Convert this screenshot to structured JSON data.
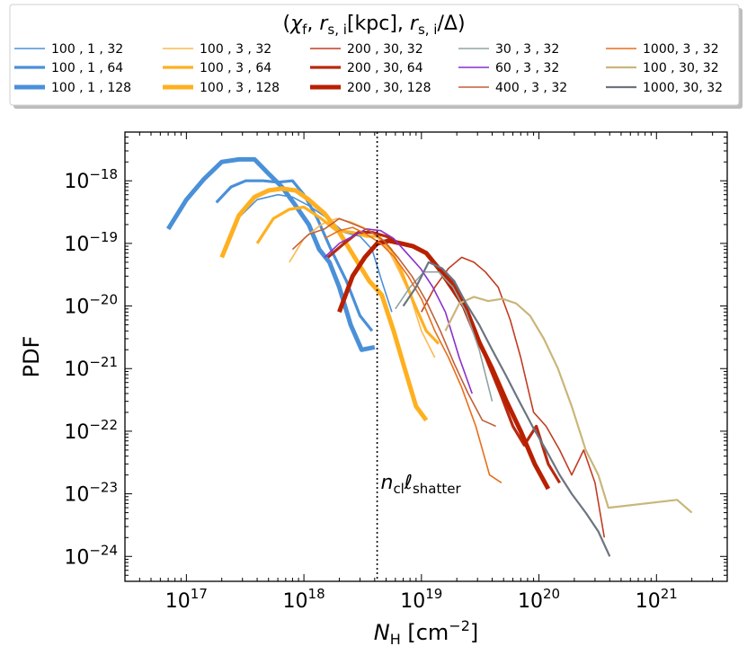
{
  "chart_data": {
    "type": "line",
    "title": "",
    "legend_title": "(χ_f, r_s,i[kpc], r_s,i/Δ)",
    "legend_title_parts": {
      "open": "(",
      "chi": "χ",
      "f": "f",
      "r": "r",
      "si": "s, i",
      "kpc": "[kpc], ",
      "delta": "/Δ)"
    },
    "legend_position": "top, above plot",
    "xlabel": "N_H [cm^-2]",
    "xlabel_parts": {
      "n": "N",
      "h": "H",
      "unit": " [cm",
      "exp": "−2",
      "close": "]"
    },
    "ylabel": "PDF",
    "xscale": "log",
    "yscale": "log",
    "xlim": [
      3e+16,
      4e+21
    ],
    "ylim": [
      4e-25,
      6e-18
    ],
    "x_ticks": [
      {
        "value": 1e+17,
        "base": "10",
        "exp": "17"
      },
      {
        "value": 1e+18,
        "base": "10",
        "exp": "18"
      },
      {
        "value": 1e+19,
        "base": "10",
        "exp": "19"
      },
      {
        "value": 1e+20,
        "base": "10",
        "exp": "20"
      },
      {
        "value": 1e+21,
        "base": "10",
        "exp": "21"
      }
    ],
    "y_ticks": [
      {
        "value": 1e-18,
        "base": "10",
        "exp": "−18"
      },
      {
        "value": 1e-19,
        "base": "10",
        "exp": "−19"
      },
      {
        "value": 1e-20,
        "base": "10",
        "exp": "−20"
      },
      {
        "value": 1e-21,
        "base": "10",
        "exp": "−21"
      },
      {
        "value": 1e-22,
        "base": "10",
        "exp": "−22"
      },
      {
        "value": 1e-23,
        "base": "10",
        "exp": "−23"
      },
      {
        "value": 1e-24,
        "base": "10",
        "exp": "−24"
      }
    ],
    "vline": {
      "x": 4.2e+18,
      "style": "dotted"
    },
    "annotation": {
      "text": "n_cl ℓ_shatter",
      "n": "n",
      "cl": "cl",
      "l": "ℓ",
      "sub": "shatter",
      "x": 4.5e+18,
      "y": 1.2e-23
    },
    "series": [
      {
        "name": "100 , 1 , 32",
        "color": "#4a90d9",
        "width": 1.6,
        "x": [
          2.8e+17,
          4e+17,
          6e+17,
          8e+17,
          1.1e+18,
          1.6e+18,
          2.2e+18,
          3e+18,
          3.8e+18,
          4.6e+18,
          5.6e+18
        ],
        "y": [
          2.6e-19,
          5e-19,
          6e-19,
          5.5e-19,
          4e-19,
          2.5e-19,
          1.5e-19,
          1.3e-19,
          8e-20,
          2.5e-20,
          8e-21
        ]
      },
      {
        "name": "100 , 1 , 64",
        "color": "#4a90d9",
        "width": 3.2,
        "x": [
          1.8e+17,
          2.4e+17,
          3.2e+17,
          4.5e+17,
          6e+17,
          8e+17,
          1e+18,
          1.3e+18,
          1.7e+18,
          2.3e+18,
          3e+18,
          3.8e+18
        ],
        "y": [
          4.5e-19,
          8e-19,
          1e-18,
          1e-18,
          9.5e-19,
          1e-18,
          6e-19,
          2.5e-19,
          8e-20,
          2.5e-20,
          7e-21,
          4e-21
        ]
      },
      {
        "name": "100 , 1 , 128",
        "color": "#4a90d9",
        "width": 5,
        "x": [
          7e+16,
          1e+17,
          1.4e+17,
          2e+17,
          2.8e+17,
          3.8e+17,
          5e+17,
          6.5e+17,
          8.5e+17,
          1.1e+18,
          1.35e+18,
          1.65e+18,
          2e+18,
          2.5e+18,
          3.1e+18,
          4e+18
        ],
        "y": [
          1.7e-19,
          5e-19,
          1.05e-18,
          2e-18,
          2.2e-18,
          2.2e-18,
          1.3e-18,
          8e-19,
          4e-19,
          2e-19,
          8e-20,
          5e-20,
          2e-20,
          5e-21,
          2e-21,
          2.2e-21
        ]
      },
      {
        "name": "100 , 3 , 32",
        "color": "#ffb84d",
        "width": 1.6,
        "x": [
          7.5e+17,
          1e+18,
          1.4e+18,
          1.9e+18,
          2.5e+18,
          3.2e+18,
          4e+18,
          5.2e+18,
          6.5e+18,
          8e+18,
          1e+19,
          1.3e+19
        ],
        "y": [
          5e-20,
          1.2e-19,
          2e-19,
          2.5e-19,
          2.2e-19,
          1.8e-19,
          1.4e-19,
          8e-20,
          3.5e-20,
          1.5e-20,
          4e-21,
          1.5e-21
        ]
      },
      {
        "name": "100 , 3 , 64",
        "color": "#ffb020",
        "width": 3.2,
        "x": [
          4e+17,
          5.5e+17,
          7.5e+17,
          1e+18,
          1.4e+18,
          1.9e+18,
          2.6e+18,
          3.4e+18,
          4.3e+18,
          5.5e+18,
          6.8e+18,
          8.5e+18,
          1.1e+19,
          1.4e+19
        ],
        "y": [
          1e-19,
          2.5e-19,
          3.5e-19,
          3.8e-19,
          2.5e-19,
          1.6e-19,
          1.5e-19,
          1.3e-19,
          1.3e-19,
          8e-20,
          3.5e-20,
          1.2e-20,
          4e-21,
          2.5e-21
        ]
      },
      {
        "name": "100 , 3 , 128",
        "color": "#ffb020",
        "width": 5,
        "x": [
          2e+17,
          2.8e+17,
          3.8e+17,
          5e+17,
          6.5e+17,
          8.5e+17,
          1.1e+18,
          1.5e+18,
          2e+18,
          2.7e+18,
          3.6e+18,
          4.6e+18,
          5.8e+18,
          7.2e+18,
          9e+18,
          1.1e+19
        ],
        "y": [
          6e-20,
          2.8e-19,
          5.5e-19,
          7e-19,
          7.5e-19,
          7e-19,
          5e-19,
          3e-19,
          1.5e-19,
          6e-20,
          2.5e-20,
          1.5e-20,
          4e-21,
          1e-21,
          2.5e-22,
          1.5e-22
        ]
      },
      {
        "name": "200 , 30, 32",
        "color": "#c23b22",
        "width": 1.6,
        "x": [
          1e+19,
          1.3e+19,
          1.7e+19,
          2.2e+19,
          2.8e+19,
          3.5e+19,
          4.5e+19,
          5.7e+19,
          7e+19,
          9e+19,
          1.15e+20,
          1.5e+20,
          1.9e+20,
          2.4e+20,
          3e+20,
          3.6e+20
        ],
        "y": [
          8e-21,
          2e-20,
          4e-20,
          6e-20,
          5e-20,
          3.5e-20,
          2e-20,
          6e-21,
          1.5e-21,
          2e-22,
          1.2e-22,
          5e-23,
          2e-23,
          5e-23,
          1.5e-23,
          2e-24
        ]
      },
      {
        "name": "200 , 30, 64",
        "color": "#b82a10",
        "width": 3.2,
        "x": [
          1.6e+18,
          2.2e+18,
          2.9e+18,
          3.8e+18,
          5e+18,
          6.5e+18,
          8.5e+18,
          1.1e+19,
          1.4e+19,
          1.8e+19,
          2.3e+19,
          2.9e+19,
          3.7e+19,
          4.7e+19,
          6e+19,
          7.5e+19,
          9.5e+19,
          1.2e+20,
          1.5e+20
        ],
        "y": [
          6e-20,
          1e-19,
          1.5e-19,
          1.5e-19,
          1.3e-19,
          1e-19,
          9e-20,
          7e-20,
          4e-20,
          2.5e-20,
          1.2e-20,
          4e-21,
          1.2e-21,
          4e-22,
          1.2e-22,
          6e-23,
          1.2e-22,
          3e-23,
          1.5e-23
        ]
      },
      {
        "name": "200 , 30, 128",
        "color": "#b82000",
        "width": 5,
        "x": [
          2e+18,
          2.6e+18,
          3.3e+18,
          4.2e+18,
          5.3e+18,
          6.7e+18,
          8.5e+18,
          1.1e+19,
          1.4e+19,
          1.8e+19,
          2.3e+19,
          3e+19,
          4e+19,
          5.3e+19,
          7e+19,
          9.2e+19,
          1.2e+20
        ],
        "y": [
          8e-21,
          3e-20,
          6e-20,
          1e-19,
          1.1e-19,
          1e-19,
          9e-20,
          7e-20,
          4e-20,
          2e-20,
          1e-20,
          3e-21,
          1e-21,
          3e-22,
          1e-22,
          3e-23,
          1.2e-23
        ]
      },
      {
        "name": "30 , 3 , 32",
        "color": "#8fa3a3",
        "width": 1.6,
        "x": [
          6e+18,
          8e+18,
          1.05e+19,
          1.4e+19,
          1.85e+19,
          2.4e+19,
          3.1e+19,
          4e+19
        ],
        "y": [
          9e-21,
          2e-20,
          3.5e-20,
          3.5e-20,
          2e-20,
          8e-21,
          2e-21,
          3e-22
        ]
      },
      {
        "name": "60 , 3 , 32",
        "color": "#8b2fc9",
        "width": 1.6,
        "x": [
          1.5e+18,
          2e+18,
          2.6e+18,
          3.4e+18,
          4.5e+18,
          5.8e+18,
          7.5e+18,
          9.8e+18,
          1.25e+19,
          1.6e+19,
          2.1e+19,
          2.7e+19
        ],
        "y": [
          6e-20,
          1e-19,
          1.3e-19,
          1.7e-19,
          1.6e-19,
          1.2e-19,
          7e-20,
          4e-20,
          2e-20,
          8e-21,
          1.5e-21,
          4e-22
        ]
      },
      {
        "name": "400 , 3 , 32",
        "color": "#c0603a",
        "width": 1.6,
        "x": [
          8e+17,
          1.1e+18,
          1.5e+18,
          2e+18,
          2.7e+18,
          3.6e+18,
          4.8e+18,
          6.3e+18,
          8.3e+18,
          1.1e+19,
          1.45e+19,
          1.9e+19,
          2.5e+19,
          3.3e+19,
          4.3e+19
        ],
        "y": [
          8e-20,
          1.4e-19,
          1.7e-19,
          2.5e-19,
          2e-19,
          1.6e-19,
          1.1e-19,
          6e-20,
          3e-20,
          1.2e-20,
          4e-21,
          1.2e-21,
          4e-22,
          1.5e-22,
          1.2e-22
        ]
      },
      {
        "name": "1000, 3 , 32",
        "color": "#e86f1a",
        "width": 1.6,
        "x": [
          1.5e+18,
          2e+18,
          2.6e+18,
          3.4e+18,
          4.5e+18,
          5.9e+18,
          7.7e+18,
          1e+19,
          1.3e+19,
          1.7e+19,
          2.2e+19,
          2.9e+19,
          3.8e+19,
          4.8e+19
        ],
        "y": [
          1.2e-19,
          1.6e-19,
          1.8e-19,
          1.4e-19,
          1e-19,
          6e-20,
          3e-20,
          1.3e-20,
          4e-21,
          1.5e-21,
          5e-22,
          1.2e-22,
          2e-23,
          1.5e-23
        ]
      },
      {
        "name": "100 , 30, 32",
        "color": "#c9b67a",
        "width": 2.2,
        "x": [
          1.6e+19,
          2.1e+19,
          2.8e+19,
          3.7e+19,
          4.9e+19,
          6.4e+19,
          8.4e+19,
          1.1e+20,
          1.45e+20,
          1.9e+20,
          2.5e+20,
          3.2e+20,
          3.9e+20,
          1.5e+21,
          2e+21
        ],
        "y": [
          4e-21,
          1.1e-20,
          1.4e-20,
          1.2e-20,
          1.3e-20,
          1.1e-20,
          7e-21,
          3e-21,
          1e-21,
          2.5e-22,
          5e-23,
          2e-23,
          6e-24,
          8e-24,
          5e-24
        ]
      },
      {
        "name": "1000, 30, 32",
        "color": "#6b7480",
        "width": 2.2,
        "x": [
          7e+18,
          9e+18,
          1.15e+19,
          1.5e+19,
          1.9e+19,
          2.4e+19,
          3.1e+19,
          4e+19,
          5.2e+19,
          6.8e+19,
          8.8e+19,
          1.15e+20,
          1.5e+20,
          1.9e+20,
          2.5e+20,
          3.2e+20,
          4e+20
        ],
        "y": [
          1e-20,
          2e-20,
          5e-20,
          4e-20,
          2.5e-20,
          1.1e-20,
          5e-21,
          2e-21,
          8e-22,
          3e-22,
          1.2e-22,
          5e-23,
          2e-23,
          1e-23,
          5e-24,
          2.5e-24,
          1e-24
        ]
      }
    ]
  }
}
